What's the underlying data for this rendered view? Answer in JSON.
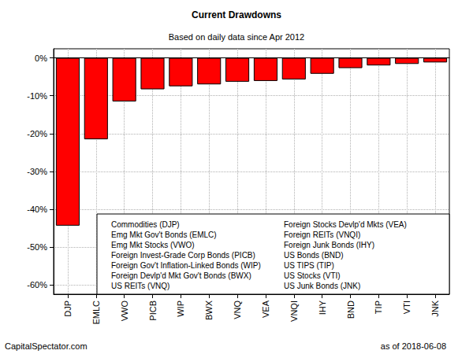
{
  "chart_data": {
    "type": "bar",
    "title": "Current Drawdowns",
    "subtitle": "Based on daily data since Apr 2012",
    "categories": [
      "DJP",
      "EMLC",
      "VWO",
      "PICB",
      "WIP",
      "BWX",
      "VNQ",
      "VEA",
      "VNQI",
      "IHY",
      "BND",
      "TIP",
      "VTI",
      "JNK"
    ],
    "values": [
      -44.3,
      -21.5,
      -11.5,
      -8.3,
      -7.5,
      -7.0,
      -6.3,
      -6.1,
      -5.7,
      -4.2,
      -2.7,
      -2.0,
      -1.6,
      -1.2
    ],
    "color": "#ff0000",
    "ylim": [
      -62.4,
      2.4
    ],
    "yticks": [
      {
        "value": -60,
        "label": "-60%"
      },
      {
        "value": -50,
        "label": "-50%"
      },
      {
        "value": -40,
        "label": "-40%"
      },
      {
        "value": -30,
        "label": "-30%"
      },
      {
        "value": -20,
        "label": "-20%"
      },
      {
        "value": -10,
        "label": "-10%"
      },
      {
        "value": 0,
        "label": "0%"
      }
    ],
    "grid": true,
    "data_labels": false,
    "annotations": [
      "Commodities (DJP)",
      "Emg Mkt Gov't Bonds (EMLC)",
      "Emg Mkt Stocks (VWO)",
      "Foreign Invest-Grade Corp Bonds (PICB)",
      "Foreign Gov't Inflation-Linked Bonds (WIP)",
      "Foreign Devlp'd Mkt Gov't Bonds (BWX)",
      "US REITs (VNQ)",
      "Foreign Stocks Devlp'd Mkts (VEA)",
      "Foreign REITs (VNQI)",
      "Foreign Junk Bonds (IHY)",
      "US Bonds (BND)",
      "US TIPS (TIP)",
      "US Stocks (VTI)",
      "US Junk Bonds (JNK)"
    ],
    "source": "CapitalSpectator.com",
    "date": "as of 2018-06-08"
  }
}
